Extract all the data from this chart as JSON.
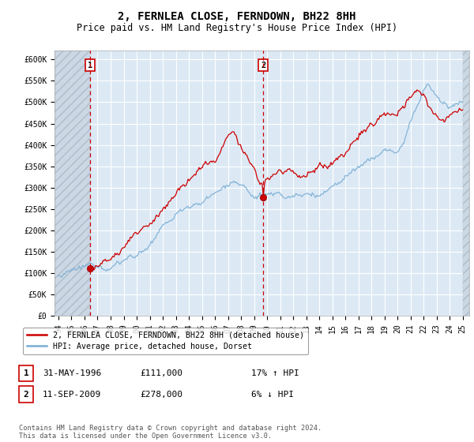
{
  "title": "2, FERNLEA CLOSE, FERNDOWN, BH22 8HH",
  "subtitle": "Price paid vs. HM Land Registry's House Price Index (HPI)",
  "ylim": [
    0,
    620000
  ],
  "yticks": [
    0,
    50000,
    100000,
    150000,
    200000,
    250000,
    300000,
    350000,
    400000,
    450000,
    500000,
    550000,
    600000
  ],
  "ytick_labels": [
    "£0",
    "£50K",
    "£100K",
    "£150K",
    "£200K",
    "£250K",
    "£300K",
    "£350K",
    "£400K",
    "£450K",
    "£500K",
    "£550K",
    "£600K"
  ],
  "sale1_x": 1996.42,
  "sale1_y": 111000,
  "sale1_label": "1",
  "sale2_x": 2009.7,
  "sale2_y": 278000,
  "sale2_label": "2",
  "sale_color": "#cc0000",
  "hpi_color": "#7aadd4",
  "background_plot": "#dce9f5",
  "grid_color": "#ffffff",
  "legend_label_sale": "2, FERNLEA CLOSE, FERNDOWN, BH22 8HH (detached house)",
  "legend_label_hpi": "HPI: Average price, detached house, Dorset",
  "annotation1_date": "31-MAY-1996",
  "annotation1_price": "£111,000",
  "annotation1_hpi": "17% ↑ HPI",
  "annotation2_date": "11-SEP-2009",
  "annotation2_price": "£278,000",
  "annotation2_hpi": "6% ↓ HPI",
  "footer": "Contains HM Land Registry data © Crown copyright and database right 2024.\nThis data is licensed under the Open Government Licence v3.0.",
  "title_fontsize": 10,
  "subtitle_fontsize": 8.5,
  "tick_fontsize": 7,
  "xtick_years": [
    1994,
    1995,
    1996,
    1997,
    1998,
    1999,
    2000,
    2001,
    2002,
    2003,
    2004,
    2005,
    2006,
    2007,
    2008,
    2009,
    2010,
    2011,
    2012,
    2013,
    2014,
    2015,
    2016,
    2017,
    2018,
    2019,
    2020,
    2021,
    2022,
    2023,
    2024,
    2025
  ]
}
